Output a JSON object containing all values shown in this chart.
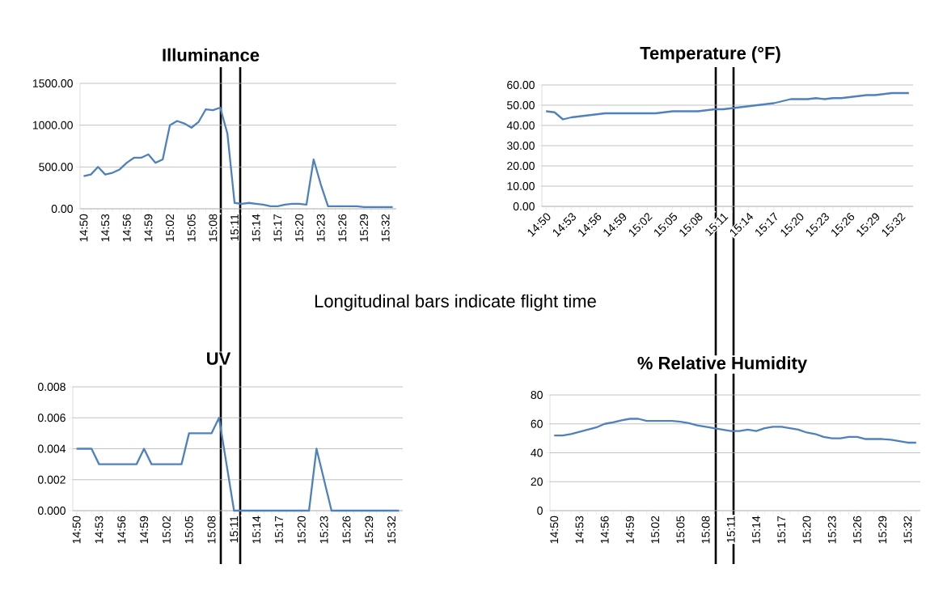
{
  "chart_data": [
    {
      "type": "line",
      "title": "Illuminance",
      "categories": [
        "14:50",
        null,
        null,
        "14:53",
        null,
        null,
        "14:56",
        null,
        null,
        "14:59",
        null,
        null,
        "15:02",
        null,
        null,
        "15:05",
        null,
        null,
        "15:08",
        null,
        null,
        "15:11",
        null,
        null,
        "15:14",
        null,
        null,
        "15:17",
        null,
        null,
        "15:20",
        null,
        null,
        "15:23",
        null,
        null,
        "15:26",
        null,
        null,
        "15:29",
        null,
        null,
        "15:32",
        null
      ],
      "values": [
        390,
        410,
        500,
        410,
        430,
        470,
        550,
        610,
        610,
        650,
        550,
        590,
        1000,
        1050,
        1020,
        970,
        1040,
        1190,
        1180,
        1210,
        900,
        70,
        60,
        70,
        60,
        50,
        30,
        30,
        50,
        60,
        60,
        50,
        590,
        290,
        30,
        30,
        30,
        30,
        30,
        20,
        20,
        20,
        20,
        20
      ],
      "color": "#4f81bd",
      "ylim": [
        0,
        1500
      ],
      "yticks": [
        {
          "value": 0,
          "label": "0.00"
        },
        {
          "value": 500,
          "label": "500.00"
        },
        {
          "value": 1000,
          "label": "1000.00"
        },
        {
          "value": 1500,
          "label": "1500.00"
        }
      ],
      "grid": "y",
      "annotations": [
        "Longitudinal bars indicate flight time"
      ]
    },
    {
      "type": "line",
      "title": "Temperature (°F)",
      "categories": [
        "14:50",
        null,
        null,
        "14:53",
        null,
        null,
        "14:56",
        null,
        null,
        "14:59",
        null,
        null,
        "15:02",
        null,
        null,
        "15:05",
        null,
        null,
        "15:08",
        null,
        null,
        "15:11",
        null,
        null,
        "15:14",
        null,
        null,
        "15:17",
        null,
        null,
        "15:20",
        null,
        null,
        "15:23",
        null,
        null,
        "15:26",
        null,
        null,
        "15:29",
        null,
        null,
        "15:32",
        null
      ],
      "values": [
        47,
        46.5,
        43,
        44,
        44.5,
        45,
        45.5,
        46,
        46,
        46,
        46,
        46,
        46,
        46,
        46.5,
        47,
        47,
        47,
        47,
        47.5,
        48,
        48,
        48.5,
        49,
        49.5,
        50,
        50.5,
        51,
        52,
        53,
        53,
        53,
        53.5,
        53,
        53.5,
        53.5,
        54,
        54.5,
        55,
        55,
        55.5,
        56,
        56,
        56
      ],
      "color": "#4f81bd",
      "ylim": [
        0,
        60
      ],
      "yticks": [
        {
          "value": 0,
          "label": "0.00"
        },
        {
          "value": 10,
          "label": "10.00"
        },
        {
          "value": 20,
          "label": "20.00"
        },
        {
          "value": 30,
          "label": "30.00"
        },
        {
          "value": 40,
          "label": "40.00"
        },
        {
          "value": 50,
          "label": "50.00"
        },
        {
          "value": 60,
          "label": "60.00"
        }
      ],
      "grid": "y"
    },
    {
      "type": "line",
      "title": "UV",
      "categories": [
        "14:50",
        null,
        null,
        "14:53",
        null,
        null,
        "14:56",
        null,
        null,
        "14:59",
        null,
        null,
        "15:02",
        null,
        null,
        "15:05",
        null,
        null,
        "15:08",
        null,
        null,
        "15:11",
        null,
        null,
        "15:14",
        null,
        null,
        "15:17",
        null,
        null,
        "15:20",
        null,
        null,
        "15:23",
        null,
        null,
        "15:26",
        null,
        null,
        "15:29",
        null,
        null,
        "15:32",
        null
      ],
      "values": [
        0.004,
        0.004,
        0.004,
        0.003,
        0.003,
        0.003,
        0.003,
        0.003,
        0.003,
        0.004,
        0.003,
        0.003,
        0.003,
        0.003,
        0.003,
        0.005,
        0.005,
        0.005,
        0.005,
        0.006,
        0.003,
        0,
        0,
        0,
        0,
        0,
        0,
        0,
        0,
        0,
        0,
        0,
        0.004,
        0.002,
        0,
        0,
        0,
        0,
        0,
        0,
        0,
        0,
        0,
        0
      ],
      "color": "#4f81bd",
      "ylim": [
        0,
        0.008
      ],
      "yticks": [
        {
          "value": 0,
          "label": "0.000"
        },
        {
          "value": 0.002,
          "label": "0.002"
        },
        {
          "value": 0.004,
          "label": "0.004"
        },
        {
          "value": 0.006,
          "label": "0.006"
        },
        {
          "value": 0.008,
          "label": "0.008"
        }
      ],
      "grid": "y"
    },
    {
      "type": "line",
      "title": "% Relative Humidity",
      "categories": [
        "14:50",
        null,
        null,
        "14:53",
        null,
        null,
        "14:56",
        null,
        null,
        "14:59",
        null,
        null,
        "15:02",
        null,
        null,
        "15:05",
        null,
        null,
        "15:08",
        null,
        null,
        "15:11",
        null,
        null,
        "15:14",
        null,
        null,
        "15:17",
        null,
        null,
        "15:20",
        null,
        null,
        "15:23",
        null,
        null,
        "15:26",
        null,
        null,
        "15:29",
        null,
        null,
        "15:32",
        null
      ],
      "values": [
        52,
        52,
        53,
        54.5,
        56,
        57.5,
        60,
        61,
        62.5,
        63.5,
        63.5,
        62,
        62,
        62,
        62,
        61.5,
        60.5,
        59,
        58,
        57,
        56,
        55,
        55,
        56,
        55,
        57,
        58,
        58,
        57,
        56,
        54,
        53,
        51,
        50,
        50,
        51,
        51,
        49.5,
        49.5,
        49.5,
        49,
        48,
        47,
        47
      ],
      "color": "#4f81bd",
      "ylim": [
        0,
        80
      ],
      "yticks": [
        0,
        20,
        40,
        60,
        80
      ],
      "grid": "y"
    }
  ]
}
